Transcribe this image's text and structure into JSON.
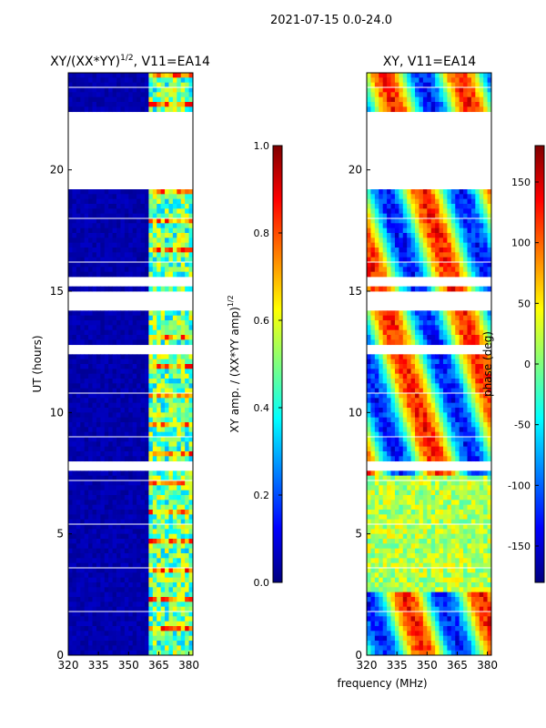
{
  "suptitle": "2021-07-15 0.0-24.0",
  "shared_xlabel": "frequency (MHz)",
  "colors": {
    "jet": [
      "#00007f",
      "#0000ff",
      "#007fff",
      "#00ffff",
      "#7fff7f",
      "#ffff00",
      "#ff7f00",
      "#ff0000",
      "#7f0000"
    ],
    "background": "#ffffff",
    "gap": "#ffffff"
  },
  "chart_data": [
    {
      "type": "heatmap",
      "title_main": "XY/(XX*YY)",
      "title_sup": "1/2",
      "title_rest": ", V11=EA14",
      "xlabel": "",
      "ylabel": "UT (hours)",
      "xlim": [
        320,
        382
      ],
      "ylim": [
        0,
        24
      ],
      "xticks": [
        320,
        335,
        350,
        365,
        380
      ],
      "yticks": [
        0,
        5,
        10,
        15,
        20
      ],
      "colormap": "jet",
      "colorbar": {
        "label_main": "XY amp. / (XX*YY amp)",
        "label_sup": "1/2",
        "range": [
          0.0,
          1.0
        ],
        "ticks": [
          "0.0",
          "0.2",
          "0.4",
          "0.6",
          "0.8",
          "1.0"
        ]
      },
      "gaps_hours": [
        [
          14.2,
          15.0
        ],
        [
          15.2,
          15.5
        ],
        [
          19.2,
          21.5
        ],
        [
          21.7,
          22.3
        ],
        [
          7.6,
          7.9
        ],
        [
          12.4,
          12.7
        ]
      ],
      "bright_band_mhz": [
        360,
        382
      ],
      "description_levels": {
        "low": 0.05,
        "band": 0.45
      }
    },
    {
      "type": "heatmap",
      "title_main": "XY, V11=EA14",
      "xlabel": "",
      "ylabel": "",
      "xlim": [
        320,
        382
      ],
      "ylim": [
        0,
        24
      ],
      "xticks": [
        320,
        335,
        350,
        365,
        380
      ],
      "yticks": [
        0,
        5,
        10,
        15,
        20
      ],
      "colormap": "jet",
      "colorbar": {
        "label_main": "phase (deg)",
        "range": [
          -180,
          180
        ],
        "ticks": [
          "-150",
          "-100",
          "-50",
          "0",
          "50",
          "100",
          "150"
        ],
        "tick_values": [
          -150,
          -100,
          -50,
          0,
          50,
          100,
          150
        ]
      },
      "gaps_hours": [
        [
          14.2,
          15.0
        ],
        [
          15.2,
          15.5
        ],
        [
          19.2,
          21.5
        ],
        [
          21.7,
          22.3
        ],
        [
          7.6,
          7.9
        ],
        [
          12.4,
          12.7
        ]
      ]
    }
  ]
}
